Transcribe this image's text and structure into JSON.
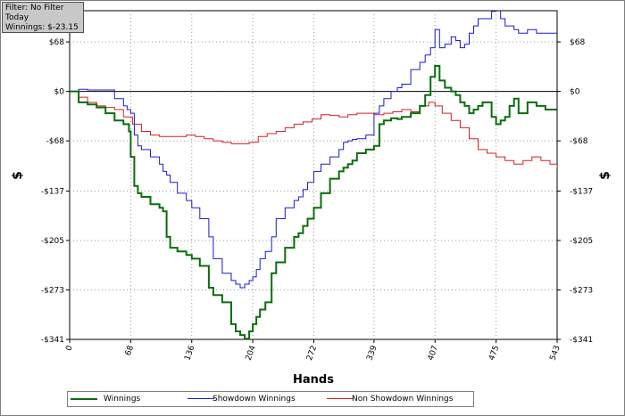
{
  "filter_box": {
    "line1": "Filter: No Filter",
    "line2": "Today",
    "line3": "Winnings: $-23.15"
  },
  "chart_data": {
    "type": "line",
    "xlabel": "Hands",
    "ylabel": "$",
    "xlim": [
      0,
      543
    ],
    "ylim": [
      -341,
      111
    ],
    "x_ticks": [
      0,
      68,
      136,
      204,
      272,
      339,
      407,
      475,
      543
    ],
    "x_tick_labels": [
      "0",
      "68",
      "136",
      "204",
      "272",
      "339",
      "407",
      "475",
      "543"
    ],
    "y_ticks": [
      68,
      0,
      -68,
      -137,
      -205,
      -273,
      -341
    ],
    "y_tick_labels": [
      "$68",
      "$0",
      "-$68",
      "-$137",
      "-$205",
      "-$273",
      "-$341"
    ],
    "grid": true,
    "legend_position": "bottom",
    "series": [
      {
        "name": "Winnings",
        "color": "#0a6e0a",
        "x": [
          0,
          10,
          20,
          30,
          40,
          50,
          60,
          66,
          68,
          72,
          76,
          80,
          90,
          100,
          104,
          108,
          112,
          120,
          130,
          136,
          145,
          155,
          160,
          170,
          180,
          185,
          190,
          195,
          200,
          204,
          208,
          212,
          218,
          225,
          230,
          240,
          250,
          255,
          260,
          265,
          272,
          280,
          290,
          300,
          305,
          310,
          315,
          320,
          330,
          339,
          345,
          350,
          358,
          365,
          370,
          380,
          390,
          396,
          402,
          407,
          412,
          418,
          425,
          430,
          435,
          440,
          445,
          450,
          455,
          460,
          470,
          475,
          480,
          485,
          490,
          495,
          500,
          510,
          520,
          530,
          543
        ],
        "y": [
          0,
          -15,
          -18,
          -22,
          -30,
          -40,
          -45,
          -55,
          -90,
          -130,
          -140,
          -145,
          -155,
          -160,
          -165,
          -200,
          -215,
          -220,
          -225,
          -230,
          -240,
          -270,
          -280,
          -290,
          -320,
          -330,
          -335,
          -340,
          -330,
          -320,
          -310,
          -300,
          -290,
          -250,
          -235,
          -215,
          -200,
          -195,
          -185,
          -175,
          -160,
          -140,
          -120,
          -110,
          -105,
          -100,
          -95,
          -85,
          -80,
          -75,
          -45,
          -40,
          -37,
          -38,
          -35,
          -30,
          -20,
          -5,
          20,
          35,
          15,
          5,
          0,
          -5,
          -15,
          -20,
          -30,
          -25,
          -20,
          -15,
          -35,
          -45,
          -40,
          -35,
          -20,
          -10,
          -30,
          -15,
          -20,
          -25,
          -23
        ]
      },
      {
        "name": "Showdown Winnings",
        "color": "#1a1ad4",
        "x": [
          0,
          10,
          20,
          30,
          40,
          50,
          60,
          64,
          68,
          72,
          76,
          80,
          90,
          100,
          104,
          108,
          112,
          120,
          130,
          136,
          145,
          155,
          160,
          170,
          180,
          185,
          190,
          195,
          200,
          204,
          208,
          212,
          218,
          225,
          230,
          240,
          250,
          255,
          260,
          265,
          272,
          280,
          290,
          300,
          305,
          310,
          315,
          320,
          330,
          339,
          345,
          350,
          358,
          365,
          370,
          380,
          390,
          396,
          402,
          407,
          412,
          418,
          425,
          430,
          435,
          440,
          445,
          450,
          455,
          460,
          470,
          475,
          480,
          485,
          490,
          495,
          500,
          510,
          520,
          530,
          543
        ],
        "y": [
          0,
          3,
          2,
          2,
          2,
          -10,
          -20,
          -25,
          -30,
          -60,
          -75,
          -80,
          -90,
          -100,
          -110,
          -115,
          -125,
          -140,
          -150,
          -160,
          -175,
          -200,
          -230,
          -250,
          -260,
          -265,
          -270,
          -265,
          -260,
          -255,
          -245,
          -230,
          -220,
          -200,
          -175,
          -160,
          -150,
          -145,
          -135,
          -125,
          -110,
          -100,
          -90,
          -80,
          -70,
          -68,
          -66,
          -65,
          -60,
          -30,
          -20,
          -10,
          0,
          5,
          10,
          30,
          40,
          50,
          60,
          85,
          60,
          65,
          75,
          70,
          60,
          65,
          80,
          90,
          100,
          100,
          110,
          115,
          100,
          90,
          90,
          85,
          80,
          85,
          80,
          80,
          80
        ]
      },
      {
        "name": "Non Showdown Winnings",
        "color": "#d42020",
        "x": [
          0,
          10,
          20,
          30,
          40,
          50,
          60,
          70,
          80,
          90,
          100,
          110,
          120,
          130,
          140,
          150,
          160,
          170,
          180,
          190,
          200,
          210,
          220,
          230,
          240,
          250,
          260,
          270,
          280,
          290,
          300,
          310,
          320,
          330,
          339,
          350,
          360,
          370,
          380,
          390,
          400,
          407,
          415,
          425,
          435,
          445,
          455,
          465,
          475,
          485,
          495,
          505,
          515,
          525,
          535,
          543
        ],
        "y": [
          0,
          -8,
          -15,
          -20,
          -22,
          -25,
          -35,
          -45,
          -55,
          -60,
          -62,
          -62,
          -62,
          -60,
          -62,
          -65,
          -68,
          -70,
          -72,
          -72,
          -70,
          -62,
          -58,
          -55,
          -50,
          -45,
          -42,
          -38,
          -32,
          -33,
          -35,
          -32,
          -30,
          -30,
          -32,
          -30,
          -28,
          -25,
          -28,
          -20,
          -15,
          -20,
          -30,
          -40,
          -50,
          -65,
          -80,
          -85,
          -90,
          -95,
          -100,
          -95,
          -90,
          -95,
          -100,
          -105
        ]
      }
    ]
  }
}
